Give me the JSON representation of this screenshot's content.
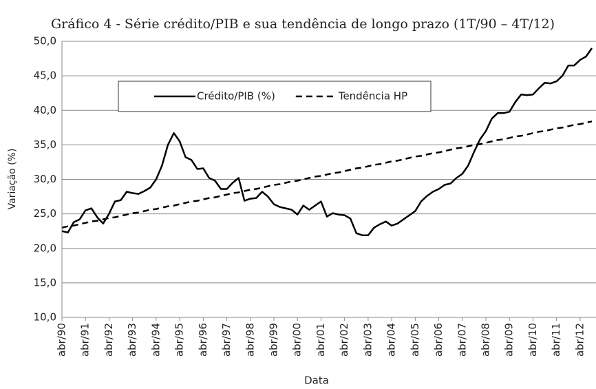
{
  "chart_data": {
    "type": "line",
    "title": "Gráfico 4 - Série crédito/PIB e sua tendência de longo prazo (1T/90 – 4T/12)",
    "xlabel": "Data",
    "ylabel": "Variação (%)",
    "categories": [
      "abr/90",
      null,
      null,
      null,
      "abr/91",
      null,
      null,
      null,
      "abr/92",
      null,
      null,
      null,
      "abr/93",
      null,
      null,
      null,
      "abr/94",
      null,
      null,
      null,
      "abr/95",
      null,
      null,
      null,
      "abr/96",
      null,
      null,
      null,
      "abr/97",
      null,
      null,
      null,
      "abr/98",
      null,
      null,
      null,
      "abr/99",
      null,
      null,
      null,
      "abr/00",
      null,
      null,
      null,
      "abr/01",
      null,
      null,
      null,
      "abr/02",
      null,
      null,
      null,
      "abr/03",
      null,
      null,
      null,
      "abr/04",
      null,
      null,
      null,
      "abr/05",
      null,
      null,
      null,
      "abr/06",
      null,
      null,
      null,
      "abr/07",
      null,
      null,
      null,
      "abr/08",
      null,
      null,
      null,
      "abr/09",
      null,
      null,
      null,
      "abr/10",
      null,
      null,
      null,
      "abr/11",
      null,
      null,
      null,
      "abr/12",
      null,
      null
    ],
    "series": [
      {
        "name": "Crédito/PIB (%)",
        "color": "#000000",
        "style": "solid",
        "values": [
          22.5,
          22.3,
          23.8,
          24.2,
          25.5,
          25.8,
          24.5,
          23.6,
          25,
          26.8,
          27,
          28.2,
          28,
          27.9,
          28.3,
          28.8,
          30,
          32,
          35,
          36.7,
          35.5,
          33.2,
          32.8,
          31.5,
          31.6,
          30.2,
          29.8,
          28.6,
          28.6,
          29.5,
          30.2,
          26.9,
          27.2,
          27.3,
          28.2,
          27.5,
          26.4,
          26,
          25.8,
          25.6,
          24.9,
          26.2,
          25.6,
          26.2,
          26.8,
          24.6,
          25.1,
          24.9,
          24.8,
          24.3,
          22.2,
          21.9,
          21.9,
          23,
          23.5,
          23.9,
          23.3,
          23.6,
          24.2,
          24.8,
          25.4,
          26.8,
          27.6,
          28.2,
          28.6,
          29.2,
          29.4,
          30.2,
          30.8,
          32,
          34,
          35.8,
          37,
          38.8,
          39.6,
          39.6,
          39.8,
          41.2,
          42.3,
          42.2,
          42.3,
          43.2,
          44,
          43.9,
          44.2,
          45,
          46.5,
          46.5,
          47.3,
          47.8,
          49
        ]
      },
      {
        "name": "Tendência HP",
        "color": "#000000",
        "style": "dashed",
        "values": [
          23.0,
          23.2,
          23.3,
          23.5,
          23.7,
          23.9,
          24.0,
          24.2,
          24.4,
          24.5,
          24.7,
          24.9,
          25.1,
          25.2,
          25.4,
          25.6,
          25.7,
          25.9,
          26.1,
          26.2,
          26.4,
          26.6,
          26.8,
          26.9,
          27.1,
          27.3,
          27.4,
          27.6,
          27.8,
          28.0,
          28.1,
          28.3,
          28.5,
          28.6,
          28.8,
          29.0,
          29.2,
          29.3,
          29.5,
          29.7,
          29.8,
          30.0,
          30.2,
          30.4,
          30.5,
          30.7,
          30.9,
          31.0,
          31.2,
          31.4,
          31.6,
          31.7,
          31.9,
          32.1,
          32.2,
          32.4,
          32.6,
          32.7,
          32.9,
          33.1,
          33.3,
          33.4,
          33.6,
          33.8,
          33.9,
          34.1,
          34.3,
          34.5,
          34.6,
          34.8,
          35.0,
          35.1,
          35.3,
          35.5,
          35.7,
          35.8,
          36.0,
          36.2,
          36.3,
          36.5,
          36.7,
          36.9,
          37.0,
          37.2,
          37.4,
          37.5,
          37.7,
          37.9,
          38.0,
          38.2,
          38.4
        ]
      }
    ],
    "ylim": [
      10,
      50
    ],
    "yticks": [
      {
        "value": 10,
        "label": "10,0"
      },
      {
        "value": 15,
        "label": "15,0"
      },
      {
        "value": 20,
        "label": "20,0"
      },
      {
        "value": 25,
        "label": "25,0"
      },
      {
        "value": 30,
        "label": "30,0"
      },
      {
        "value": 35,
        "label": "35,0"
      },
      {
        "value": 40,
        "label": "40,0"
      },
      {
        "value": 45,
        "label": "45,0"
      },
      {
        "value": 50,
        "label": "50,0"
      }
    ],
    "grid": true,
    "legend": "top-left"
  }
}
